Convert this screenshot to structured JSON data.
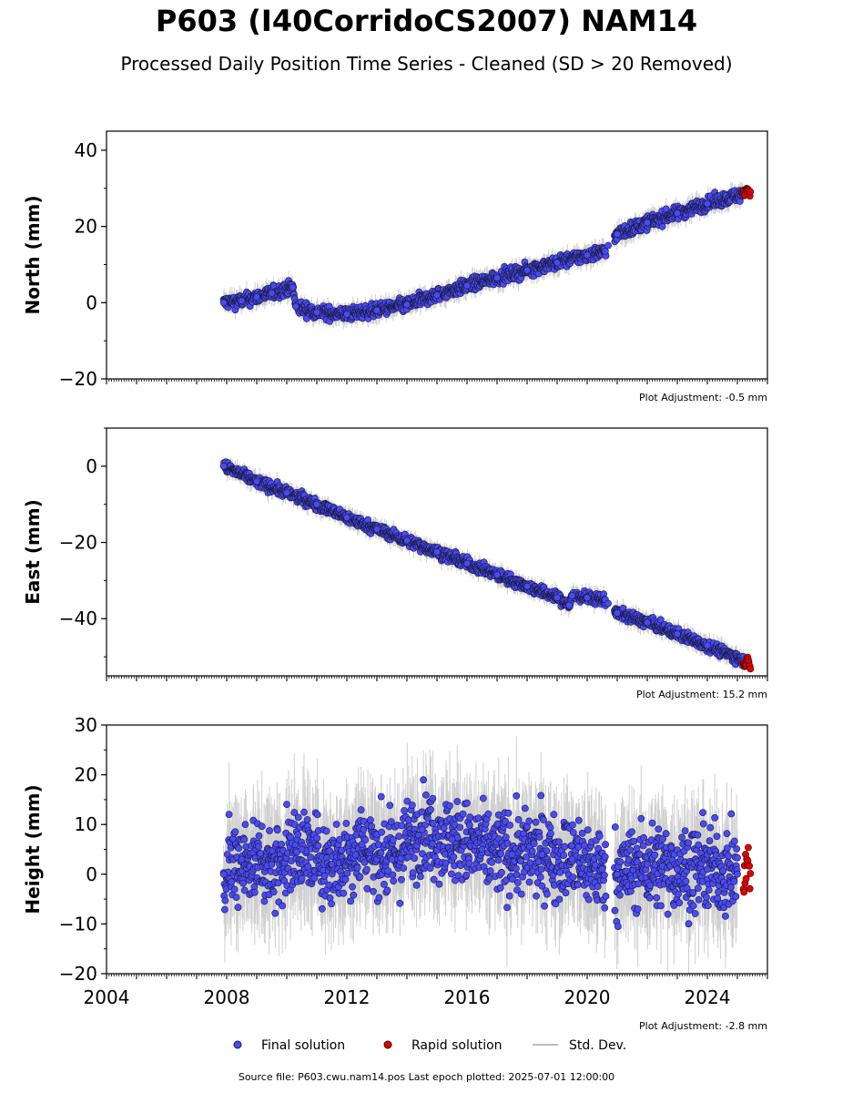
{
  "title": "P603 (I40CorridoCS2007) NAM14",
  "subtitle": "Processed Daily Position Time Series - Cleaned (SD > 20 Removed)",
  "source_note": "Source file: P603.cwu.nam14.pos  Last epoch plotted: 2025-07-01 12:00:00",
  "colors": {
    "final": "#4a4af5",
    "rapid": "#e00000",
    "stddev": "#bbbbbb"
  },
  "chart_data": [
    {
      "type": "scatter",
      "ylabel": "North (mm)",
      "xlim": [
        2004,
        2026
      ],
      "ylim": [
        -20,
        45
      ],
      "yticks": [
        -20,
        0,
        20,
        40
      ],
      "adjustment": "Plot Adjustment: -0.5 mm",
      "series": [
        {
          "name": "Final solution",
          "x": [
            2007.9,
            2008.5,
            2009.0,
            2009.5,
            2010.2,
            2010.3,
            2011.0,
            2012.0,
            2013.0,
            2014.0,
            2015.0,
            2016.0,
            2017.0,
            2018.0,
            2019.0,
            2020.0,
            2020.6,
            2020.7,
            2021.0,
            2022.0,
            2023.0,
            2024.0,
            2025.2
          ],
          "y": [
            0,
            0.5,
            1.5,
            2.5,
            4,
            -1,
            -2.5,
            -3,
            -2,
            -0.5,
            2,
            4.5,
            6.5,
            8.5,
            10.5,
            12.5,
            13.5,
            15,
            18,
            21,
            23.5,
            26,
            28.5
          ]
        },
        {
          "name": "Rapid solution",
          "x": [
            2025.25,
            2025.35,
            2025.45
          ],
          "y": [
            29,
            30,
            28.5
          ]
        }
      ]
    },
    {
      "type": "scatter",
      "ylabel": "East (mm)",
      "xlim": [
        2004,
        2026
      ],
      "ylim": [
        -55,
        10
      ],
      "yticks": [
        -40,
        -20,
        0
      ],
      "adjustment": "Plot Adjustment: 15.2 mm",
      "series": [
        {
          "name": "Final solution",
          "x": [
            2007.9,
            2009.0,
            2010.0,
            2011.0,
            2012.0,
            2013.0,
            2014.0,
            2015.0,
            2016.0,
            2017.0,
            2018.0,
            2019.0,
            2019.4,
            2019.5,
            2020.0,
            2020.6,
            2020.7,
            2021.0,
            2022.0,
            2023.0,
            2024.0,
            2025.2
          ],
          "y": [
            0,
            -4,
            -7,
            -10,
            -13.5,
            -16.5,
            -19.5,
            -22.5,
            -25.5,
            -28.5,
            -31.5,
            -34.5,
            -36.5,
            -34,
            -34.5,
            -35,
            -36,
            -38.5,
            -41,
            -44,
            -47,
            -51
          ]
        },
        {
          "name": "Rapid solution",
          "x": [
            2025.25,
            2025.35,
            2025.45
          ],
          "y": [
            -52,
            -50.5,
            -53
          ]
        }
      ]
    },
    {
      "type": "scatter",
      "ylabel": "Height (mm)",
      "xlim": [
        2004,
        2026
      ],
      "ylim": [
        -20,
        30
      ],
      "yticks": [
        -20,
        -10,
        0,
        10,
        20,
        30
      ],
      "xticks": [
        "2004",
        "2008",
        "2012",
        "2016",
        "2020",
        "2024"
      ],
      "adjustment": "Plot Adjustment: -2.8 mm",
      "series": [
        {
          "name": "Final solution",
          "x": [
            2007.9,
            2008.5,
            2009.5,
            2010.5,
            2011.5,
            2012.5,
            2013.5,
            2014.5,
            2015.5,
            2016.5,
            2017.5,
            2018.5,
            2019.5,
            2020.5,
            2021.0,
            2022.0,
            2023.0,
            2024.0,
            2025.0
          ],
          "y": [
            0,
            3,
            2,
            5,
            2,
            6,
            3,
            9,
            7,
            5,
            4,
            4,
            3,
            1,
            0,
            2,
            1,
            1,
            0
          ]
        },
        {
          "name": "Rapid solution",
          "x": [
            2025.25,
            2025.35,
            2025.45
          ],
          "y": [
            1,
            2,
            0
          ]
        }
      ]
    }
  ],
  "legend": {
    "final": "Final solution",
    "rapid": "Rapid solution",
    "stddev": "Std. Dev."
  }
}
